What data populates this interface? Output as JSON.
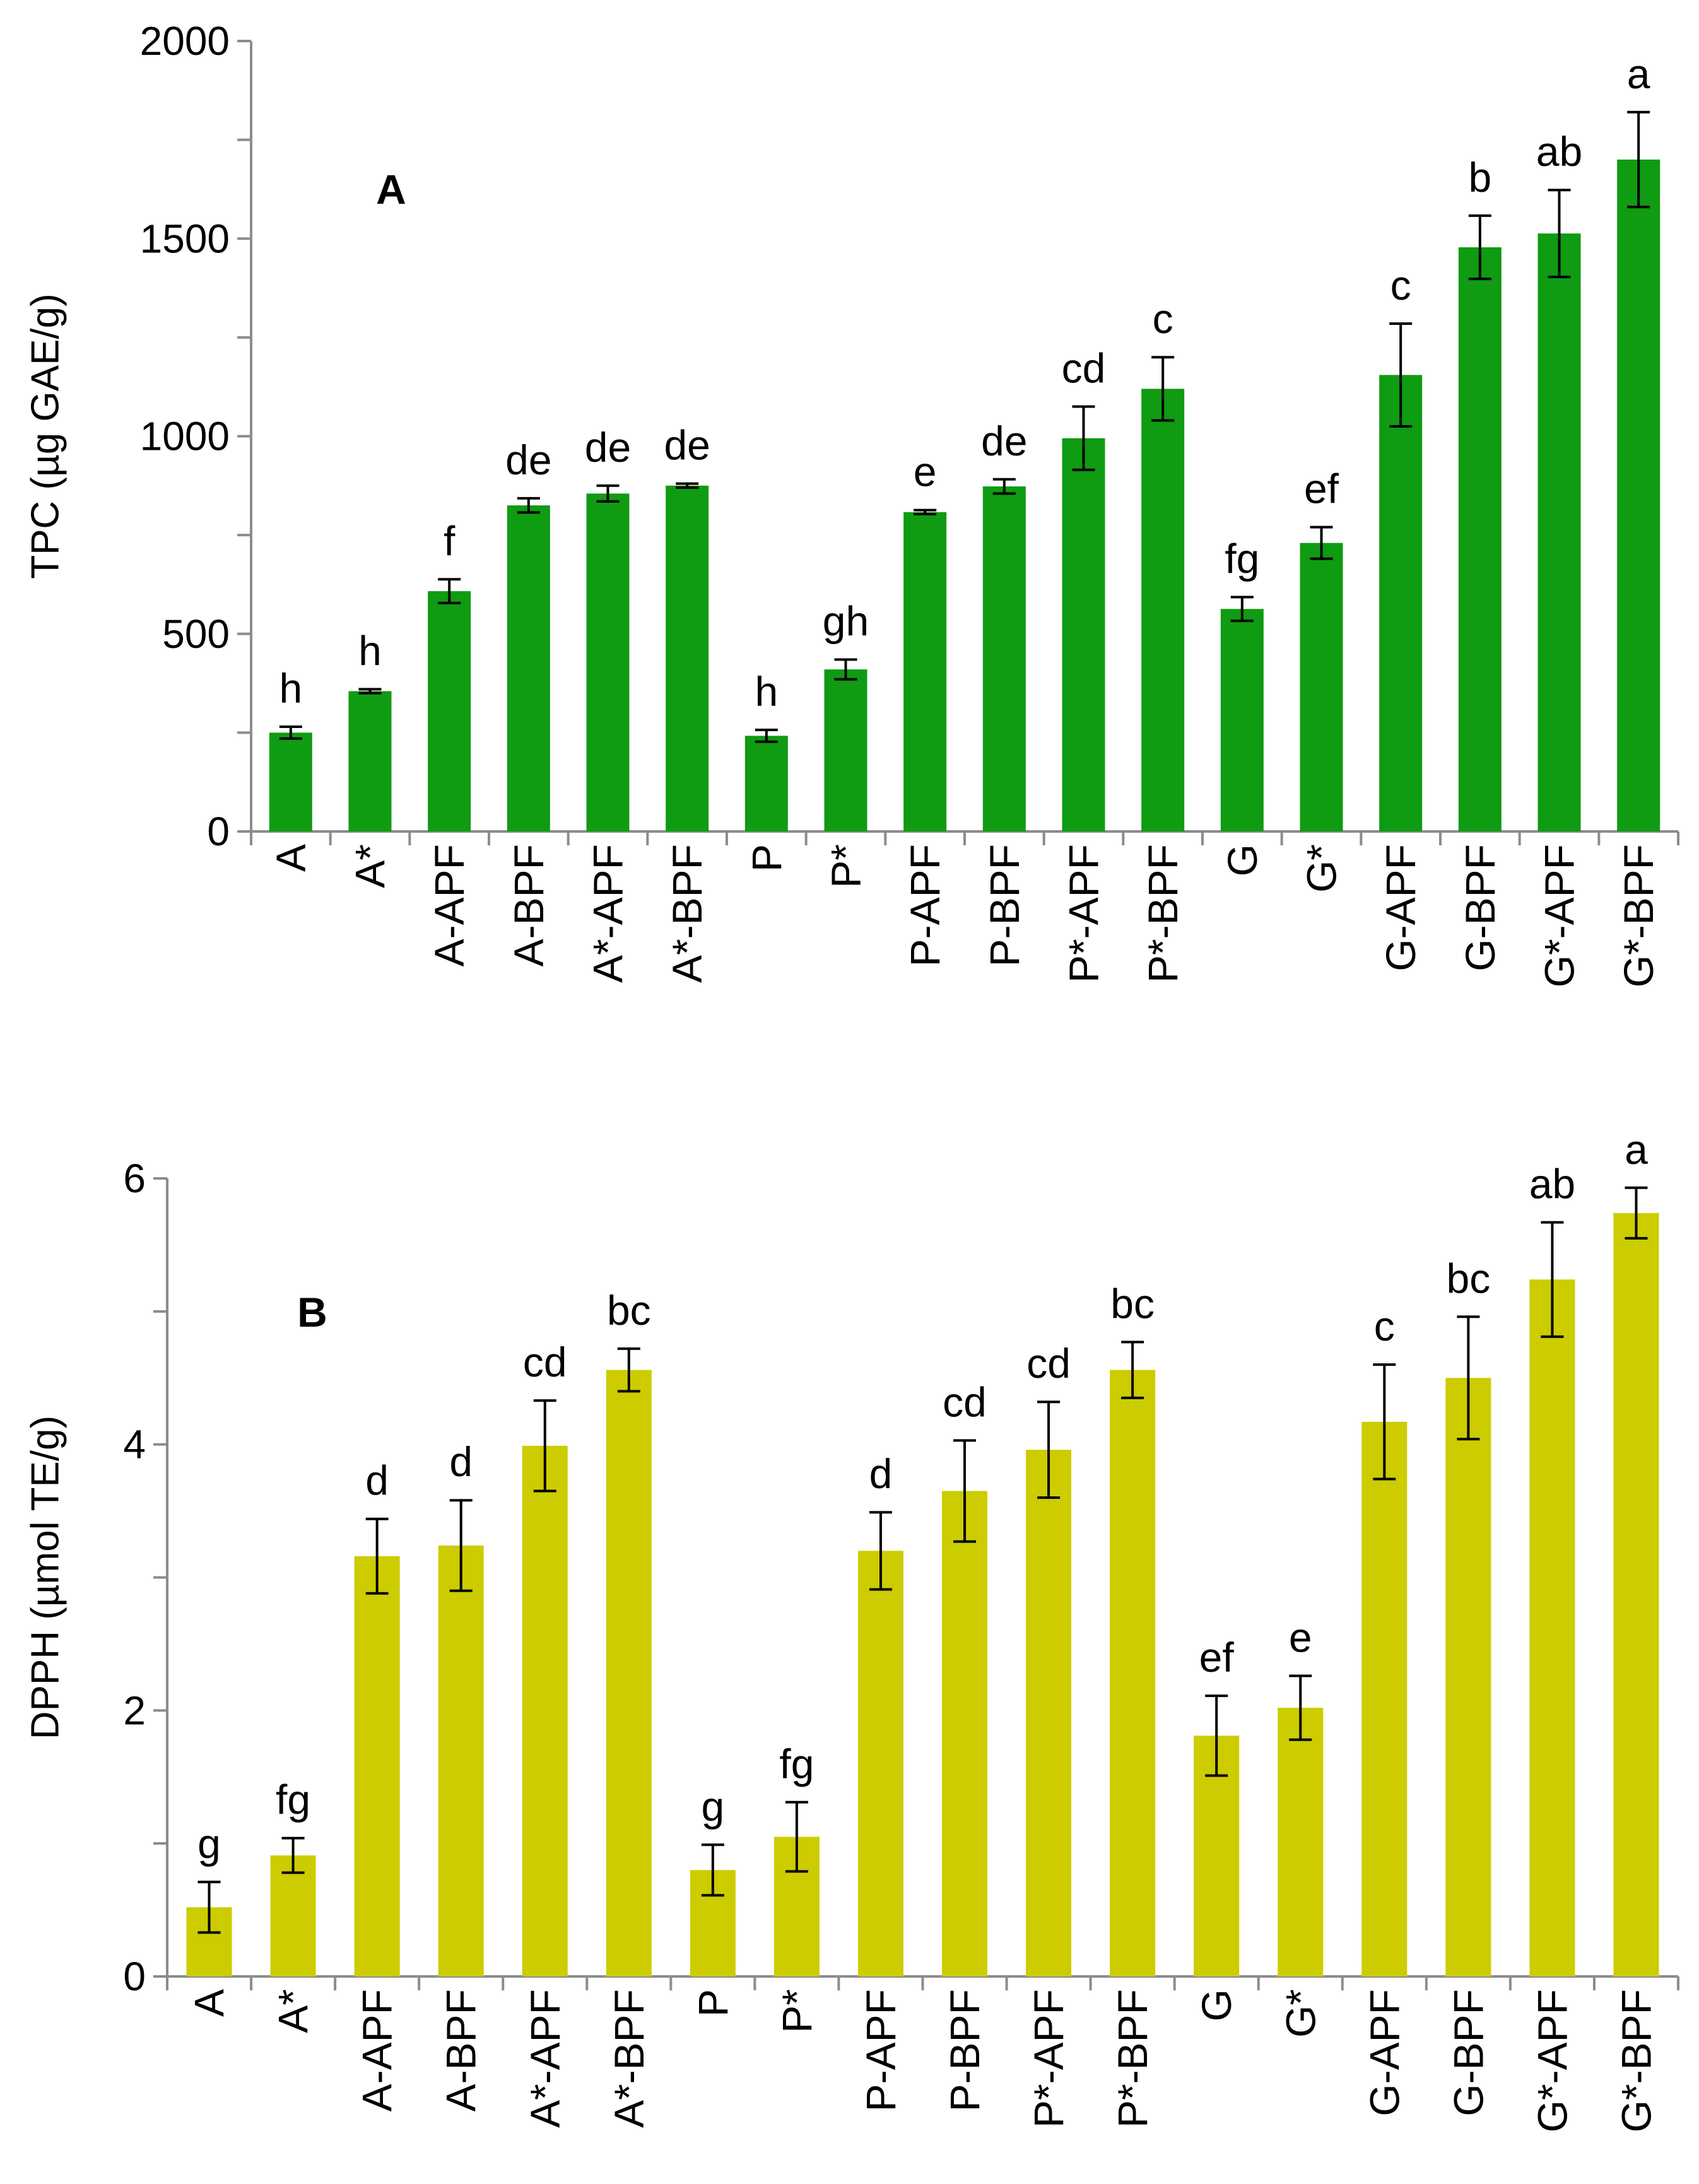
{
  "chart_data": [
    {
      "type": "bar",
      "panel_label": "A",
      "ylabel": "TPC (µg GAE/g)",
      "xlabel": "",
      "ylim": [
        0,
        2000
      ],
      "yticks": [
        0,
        500,
        1000,
        1500,
        2000
      ],
      "color": "#0f9b12",
      "categories": [
        "A",
        "A*",
        "A-APF",
        "A-BPF",
        "A*-APF",
        "A*-BPF",
        "P",
        "P*",
        "P-APF",
        "P-BPF",
        "P*-APF",
        "P*-BPF",
        "G",
        "G*",
        "G-APF",
        "G-BPF",
        "G*-APF",
        "G*-BPF"
      ],
      "values": [
        250,
        355,
        608,
        825,
        855,
        875,
        242,
        410,
        808,
        873,
        995,
        1120,
        563,
        730,
        1155,
        1478,
        1513,
        1700
      ],
      "errors": [
        15,
        5,
        30,
        18,
        20,
        5,
        15,
        25,
        5,
        18,
        80,
        80,
        30,
        40,
        130,
        80,
        110,
        120
      ],
      "letters": [
        "h",
        "h",
        "f",
        "de",
        "de",
        "de",
        "h",
        "gh",
        "e",
        "de",
        "cd",
        "c",
        "fg",
        "ef",
        "c",
        "b",
        "ab",
        "a"
      ]
    },
    {
      "type": "bar",
      "panel_label": "B",
      "ylabel": "DPPH (µmol TE/g)",
      "xlabel": "",
      "ylim": [
        0,
        6
      ],
      "yticks": [
        0,
        2,
        4,
        6
      ],
      "color": "#cccc00",
      "categories": [
        "A",
        "A*",
        "A-APF",
        "A-BPF",
        "A*-APF",
        "A*-BPF",
        "P",
        "P*",
        "P-APF",
        "P-BPF",
        "P*-APF",
        "P*-BPF",
        "G",
        "G*",
        "G-APF",
        "G-BPF",
        "G*-APF",
        "G*-BPF"
      ],
      "values": [
        0.52,
        0.91,
        3.16,
        3.24,
        3.99,
        4.56,
        0.8,
        1.05,
        3.2,
        3.65,
        3.96,
        4.56,
        1.81,
        2.02,
        4.17,
        4.5,
        5.24,
        5.74
      ],
      "errors": [
        0.19,
        0.13,
        0.28,
        0.34,
        0.34,
        0.16,
        0.19,
        0.26,
        0.29,
        0.38,
        0.36,
        0.21,
        0.3,
        0.24,
        0.43,
        0.46,
        0.43,
        0.19
      ],
      "letters": [
        "g",
        "fg",
        "d",
        "d",
        "cd",
        "bc",
        "g",
        "fg",
        "d",
        "cd",
        "cd",
        "bc",
        "ef",
        "e",
        "c",
        "bc",
        "ab",
        "a"
      ]
    }
  ]
}
